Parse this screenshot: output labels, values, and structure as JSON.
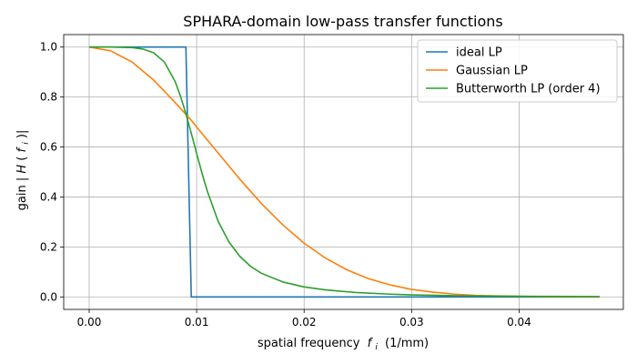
{
  "chart_data": {
    "type": "line",
    "title": "SPHARA-domain low-pass transfer functions",
    "xlabel": "spatial frequency",
    "xlabel_symbol": "f",
    "xlabel_sub": "i",
    "xlabel_unit": "(1/mm)",
    "ylabel": "gain |",
    "ylabel_symbol": "H",
    "ylabel_paren_open": "(",
    "ylabel_f": "f",
    "ylabel_sub": "i",
    "ylabel_close": ")|",
    "xlim": [
      -0.00237,
      0.0497
    ],
    "ylim": [
      -0.05,
      1.05
    ],
    "xticks": [
      0.0,
      0.01,
      0.02,
      0.03,
      0.04
    ],
    "xtick_labels": [
      "0.00",
      "0.01",
      "0.02",
      "0.03",
      "0.04"
    ],
    "yticks": [
      0.0,
      0.2,
      0.4,
      0.6,
      0.8,
      1.0
    ],
    "ytick_labels": [
      "0.0",
      "0.2",
      "0.4",
      "0.6",
      "0.8",
      "1.0"
    ],
    "grid": true,
    "legend_position": "top-right",
    "series": [
      {
        "name": "ideal LP",
        "color": "#1f77b4",
        "x": [
          0.0,
          0.009,
          0.0095,
          0.0475
        ],
        "y": [
          1.0,
          1.0,
          0.0,
          0.0
        ]
      },
      {
        "name": "Gaussian LP",
        "color": "#ff7f0e",
        "x": [
          0.0,
          0.002,
          0.004,
          0.006,
          0.008,
          0.0095,
          0.01,
          0.012,
          0.014,
          0.016,
          0.018,
          0.02,
          0.022,
          0.024,
          0.026,
          0.028,
          0.03,
          0.032,
          0.034,
          0.036,
          0.038,
          0.04,
          0.042,
          0.044,
          0.0475
        ],
        "y": [
          1.0,
          0.985,
          0.94,
          0.868,
          0.778,
          0.707,
          0.68,
          0.576,
          0.472,
          0.375,
          0.289,
          0.215,
          0.155,
          0.108,
          0.073,
          0.048,
          0.03,
          0.019,
          0.011,
          0.006,
          0.004,
          0.002,
          0.001,
          0.0006,
          0.0002
        ]
      },
      {
        "name": "Butterworth LP (order 4)",
        "color": "#2ca02c",
        "x": [
          0.0,
          0.002,
          0.004,
          0.005,
          0.006,
          0.007,
          0.008,
          0.0085,
          0.009,
          0.0095,
          0.01,
          0.0105,
          0.011,
          0.012,
          0.013,
          0.014,
          0.015,
          0.016,
          0.018,
          0.02,
          0.022,
          0.025,
          0.028,
          0.03,
          0.034,
          0.038,
          0.042,
          0.0475
        ],
        "y": [
          1.0,
          1.0,
          0.998,
          0.992,
          0.977,
          0.94,
          0.862,
          0.803,
          0.733,
          0.655,
          0.574,
          0.495,
          0.422,
          0.303,
          0.22,
          0.163,
          0.123,
          0.095,
          0.06,
          0.04,
          0.028,
          0.017,
          0.011,
          0.008,
          0.005,
          0.0031,
          0.002,
          0.0013
        ]
      }
    ]
  }
}
